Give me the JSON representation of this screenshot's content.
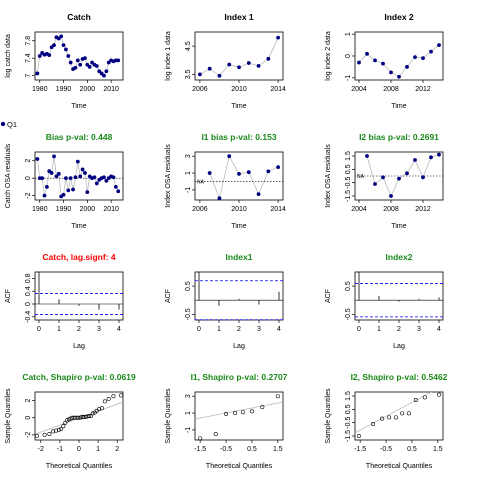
{
  "legend_label": "Q1",
  "colors": {
    "green": "#1a8a1a",
    "red": "#ff0000",
    "blue": "#0000ff",
    "navy": "#000080",
    "dark": "#222222",
    "grid": "#bbbbbb"
  },
  "panels": [
    {
      "id": "catch-ts",
      "type": "line",
      "title": "Catch",
      "xlabel": "Time",
      "ylabel": "log catch data",
      "xlim": [
        1978,
        2015
      ],
      "ylim": [
        6.9,
        8.0
      ],
      "xticks": [
        1980,
        1990,
        2000,
        2010
      ],
      "yticks": [
        7.0,
        7.4,
        7.8
      ],
      "series": [
        {
          "x": [
            1979,
            1980,
            1981,
            1982,
            1983,
            1984,
            1985,
            1986,
            1987,
            1988,
            1989,
            1990,
            1991,
            1992,
            1993,
            1994,
            1995,
            1996,
            1997,
            1998,
            1999,
            2000,
            2001,
            2002,
            2003,
            2004,
            2005,
            2006,
            2007,
            2008,
            2009,
            2010,
            2011,
            2012,
            2013
          ],
          "y": [
            7.05,
            7.45,
            7.52,
            7.48,
            7.5,
            7.47,
            7.65,
            7.7,
            7.88,
            7.85,
            7.9,
            7.7,
            7.6,
            7.45,
            7.3,
            7.15,
            7.18,
            7.35,
            7.25,
            7.38,
            7.4,
            7.25,
            7.2,
            7.3,
            7.25,
            7.22,
            7.1,
            7.05,
            7.0,
            7.1,
            7.3,
            7.35,
            7.33,
            7.35,
            7.35
          ]
        }
      ]
    },
    {
      "id": "index1-ts",
      "type": "line",
      "title": "Index 1",
      "xlabel": "Time",
      "ylabel": "log index 1 data",
      "xlim": [
        2005.5,
        2014.5
      ],
      "ylim": [
        3.3,
        5.0
      ],
      "xticks": [
        2006,
        2010,
        2014
      ],
      "yticks": [
        3.5,
        4.5
      ],
      "series": [
        {
          "x": [
            2006,
            2007,
            2008,
            2009,
            2010,
            2011,
            2012,
            2013,
            2014
          ],
          "y": [
            3.5,
            3.7,
            3.45,
            3.85,
            3.75,
            3.9,
            3.8,
            4.05,
            4.8
          ]
        }
      ]
    },
    {
      "id": "index2-ts",
      "type": "line",
      "title": "Index 2",
      "xlabel": "Time",
      "ylabel": "log index 2 data",
      "xlim": [
        2003.5,
        2014.5
      ],
      "ylim": [
        -1.1,
        1.1
      ],
      "xticks": [
        2004,
        2008,
        2012
      ],
      "yticks": [
        -1.0,
        0.0,
        1.0
      ],
      "series": [
        {
          "x": [
            2004,
            2005,
            2006,
            2007,
            2008,
            2009,
            2010,
            2011,
            2012,
            2013,
            2014
          ],
          "y": [
            -0.3,
            0.1,
            -0.2,
            -0.35,
            -0.75,
            -0.95,
            -0.5,
            -0.05,
            -0.1,
            0.2,
            0.5
          ]
        }
      ]
    },
    {
      "id": "catch-bias",
      "type": "scatter",
      "title": "Bias p-val: 0.448",
      "title_color": "green",
      "xlabel": "Time",
      "ylabel": "Catch OSA residuals",
      "xlim": [
        1978,
        2015
      ],
      "ylim": [
        -2.5,
        3.0
      ],
      "xticks": [
        1980,
        1990,
        2000,
        2010
      ],
      "yticks": [
        -2,
        0,
        2
      ],
      "zero_line": true,
      "series": [
        {
          "x": [
            1979,
            1980,
            1981,
            1982,
            1983,
            1984,
            1985,
            1986,
            1987,
            1988,
            1989,
            1990,
            1991,
            1992,
            1993,
            1994,
            1995,
            1996,
            1997,
            1998,
            1999,
            2000,
            2001,
            2002,
            2003,
            2004,
            2005,
            2006,
            2007,
            2008,
            2009,
            2010,
            2011,
            2012,
            2013
          ],
          "y": [
            2.2,
            0.0,
            0.0,
            -2.0,
            -1.0,
            0.8,
            0.6,
            2.5,
            0.2,
            0.5,
            -2.1,
            -1.9,
            0.0,
            -1.4,
            0.0,
            -1.3,
            0.1,
            1.9,
            0.2,
            1.0,
            0.6,
            -1.6,
            0.2,
            0.0,
            0.1,
            -0.6,
            -0.2,
            0.0,
            0.1,
            -0.3,
            0.0,
            0.2,
            0.1,
            -1.0,
            -1.5
          ]
        }
      ]
    },
    {
      "id": "index1-bias",
      "type": "scatter",
      "title": "I1 bias p-val: 0.153",
      "title_color": "green",
      "xlabel": "Time",
      "ylabel": "Index OSA residuals",
      "xlim": [
        2005.5,
        2014.5
      ],
      "ylim": [
        -2.2,
        3.5
      ],
      "xticks": [
        2006,
        2010,
        2014
      ],
      "yticks": [
        -1,
        1,
        3
      ],
      "zero_line": true,
      "annotation": "NA",
      "series": [
        {
          "x": [
            2007,
            2008,
            2009,
            2010,
            2011,
            2012,
            2013,
            2014
          ],
          "y": [
            1.0,
            -2.0,
            3.0,
            0.9,
            1.1,
            -1.5,
            1.2,
            1.7
          ]
        }
      ]
    },
    {
      "id": "index2-bias",
      "type": "scatter",
      "title": "I2 bias p-val: 0.2691",
      "title_color": "green",
      "xlabel": "Time",
      "ylabel": "Index OSA residuals",
      "xlim": [
        2003.5,
        2014.5
      ],
      "ylim": [
        -1.8,
        1.8
      ],
      "xticks": [
        2004,
        2008,
        2012
      ],
      "yticks": [
        -1.5,
        -0.5,
        0.5,
        1.5
      ],
      "zero_line": true,
      "annotation": "NA",
      "series": [
        {
          "x": [
            2005,
            2006,
            2007,
            2008,
            2009,
            2010,
            2011,
            2012,
            2013,
            2014
          ],
          "y": [
            1.5,
            -0.6,
            -0.1,
            -1.5,
            -0.2,
            0.2,
            1.2,
            -0.1,
            1.4,
            1.6
          ]
        }
      ]
    },
    {
      "id": "catch-acf",
      "type": "acf",
      "title": "Catch, lag.signf: 4",
      "title_color": "red",
      "xlabel": "Lag",
      "ylabel": "ACF",
      "xlim": [
        -0.2,
        4.2
      ],
      "ylim": [
        -0.5,
        1.0
      ],
      "xticks": [
        0,
        1,
        2,
        3,
        4
      ],
      "yticks": [
        -0.4,
        0.0,
        0.4,
        0.8
      ],
      "ci": [
        0.33,
        -0.33
      ],
      "series": [
        {
          "x": [
            0,
            1,
            2,
            3,
            4
          ],
          "y": [
            1.0,
            0.15,
            -0.06,
            -0.18,
            -0.17
          ]
        }
      ]
    },
    {
      "id": "index1-acf",
      "type": "acf",
      "title": "Index1",
      "title_color": "green",
      "xlabel": "Lag",
      "ylabel": "ACF",
      "xlim": [
        -0.2,
        4.2
      ],
      "ylim": [
        -0.7,
        1.0
      ],
      "xticks": [
        0,
        1,
        2,
        3,
        4
      ],
      "yticks": [
        -0.5,
        0.5
      ],
      "ci": [
        0.69,
        -0.69
      ],
      "series": [
        {
          "x": [
            0,
            1,
            2,
            3,
            4
          ],
          "y": [
            1.0,
            -0.2,
            0.05,
            -0.15,
            0.3
          ]
        }
      ]
    },
    {
      "id": "index2-acf",
      "type": "acf",
      "title": "Index2",
      "title_color": "green",
      "xlabel": "Lag",
      "ylabel": "ACF",
      "xlim": [
        -0.2,
        4.2
      ],
      "ylim": [
        -0.7,
        1.0
      ],
      "xticks": [
        0,
        1,
        2,
        3,
        4
      ],
      "yticks": [
        -0.5,
        0.5
      ],
      "ci": [
        0.59,
        -0.59
      ],
      "series": [
        {
          "x": [
            0,
            1,
            2,
            3,
            4
          ],
          "y": [
            1.0,
            0.15,
            -0.05,
            0.05,
            0.1
          ]
        }
      ]
    },
    {
      "id": "catch-qq",
      "type": "qq",
      "title": "Catch, Shapiro p-val: 0.0619",
      "title_color": "green",
      "xlabel": "Theoretical Quantiles",
      "ylabel": "Sample Quantiles",
      "xlim": [
        -2.3,
        2.3
      ],
      "ylim": [
        -2.6,
        3.0
      ],
      "xticks": [
        -2,
        -1,
        0,
        1,
        2
      ],
      "yticks": [
        -2,
        0,
        2
      ],
      "series": [
        {
          "x": [
            -2.2,
            -1.8,
            -1.55,
            -1.35,
            -1.2,
            -1.05,
            -0.93,
            -0.82,
            -0.72,
            -0.62,
            -0.53,
            -0.44,
            -0.36,
            -0.28,
            -0.2,
            -0.12,
            -0.04,
            0.04,
            0.12,
            0.2,
            0.28,
            0.36,
            0.44,
            0.53,
            0.62,
            0.72,
            0.82,
            0.93,
            1.05,
            1.2,
            1.35,
            1.55,
            1.8,
            2.2
          ],
          "y": [
            -2.1,
            -2.0,
            -1.9,
            -1.6,
            -1.5,
            -1.4,
            -1.3,
            -1.0,
            -0.6,
            -0.3,
            -0.2,
            -0.1,
            0.0,
            0.0,
            0.0,
            0.0,
            0.0,
            0.0,
            0.05,
            0.1,
            0.1,
            0.1,
            0.15,
            0.2,
            0.2,
            0.5,
            0.6,
            0.8,
            1.0,
            1.1,
            1.9,
            2.2,
            2.5,
            2.6
          ]
        }
      ]
    },
    {
      "id": "index1-qq",
      "type": "qq",
      "title": "I1, Shapiro p-val: 0.2707",
      "title_color": "green",
      "xlabel": "Theoretical Quantiles",
      "ylabel": "Sample Quantiles",
      "xlim": [
        -1.7,
        1.7
      ],
      "ylim": [
        -2.2,
        3.5
      ],
      "xticks": [
        -1.5,
        -0.5,
        0.5,
        1.5
      ],
      "yticks": [
        -1,
        1,
        3
      ],
      "series": [
        {
          "x": [
            -1.5,
            -0.9,
            -0.5,
            -0.15,
            0.15,
            0.5,
            0.9,
            1.5
          ],
          "y": [
            -2.0,
            -1.5,
            0.9,
            1.0,
            1.1,
            1.2,
            1.7,
            3.0
          ]
        }
      ]
    },
    {
      "id": "index2-qq",
      "type": "qq",
      "title": "I2, Shapiro p-val: 0.5462",
      "title_color": "green",
      "xlabel": "Theoretical Quantiles",
      "ylabel": "Sample Quantiles",
      "xlim": [
        -1.7,
        1.7
      ],
      "ylim": [
        -1.8,
        1.8
      ],
      "xticks": [
        -1.5,
        -0.5,
        0.5,
        1.5
      ],
      "yticks": [
        -1.5,
        -0.5,
        0.5,
        1.5
      ],
      "series": [
        {
          "x": [
            -1.55,
            -1.0,
            -0.65,
            -0.38,
            -0.12,
            0.12,
            0.38,
            0.65,
            1.0,
            1.55
          ],
          "y": [
            -1.5,
            -0.6,
            -0.2,
            -0.1,
            -0.1,
            0.2,
            0.2,
            1.2,
            1.4,
            1.6
          ]
        }
      ]
    }
  ]
}
